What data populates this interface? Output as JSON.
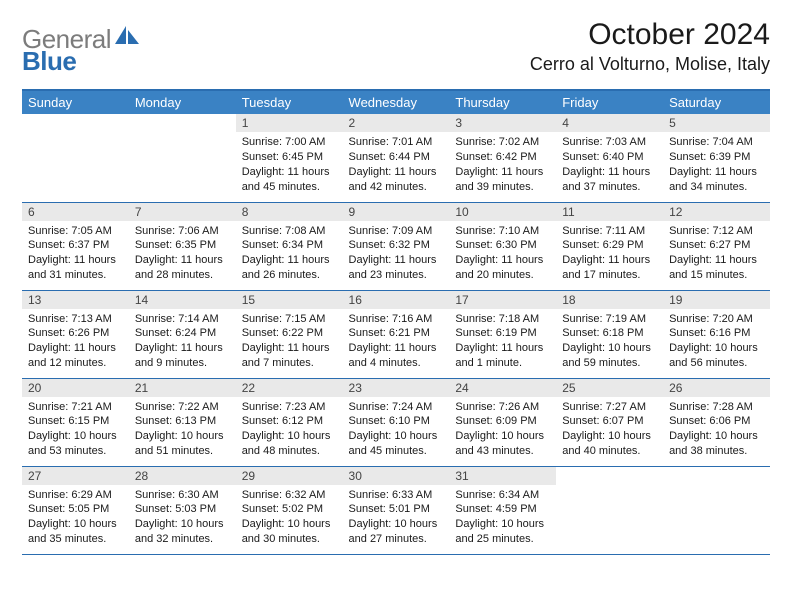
{
  "logo": {
    "part1": "General",
    "part2": "Blue"
  },
  "title": "October 2024",
  "location": "Cerro al Volturno, Molise, Italy",
  "colors": {
    "header_bg": "#3a82c4",
    "border": "#2a6db0",
    "daynum_bg": "#e9e9e9",
    "logo_gray": "#7c7c7c",
    "logo_blue": "#2a6db0"
  },
  "daysOfWeek": [
    "Sunday",
    "Monday",
    "Tuesday",
    "Wednesday",
    "Thursday",
    "Friday",
    "Saturday"
  ],
  "weeks": [
    [
      null,
      null,
      {
        "n": "1",
        "sr": "7:00 AM",
        "ss": "6:45 PM",
        "dl": "11 hours and 45 minutes."
      },
      {
        "n": "2",
        "sr": "7:01 AM",
        "ss": "6:44 PM",
        "dl": "11 hours and 42 minutes."
      },
      {
        "n": "3",
        "sr": "7:02 AM",
        "ss": "6:42 PM",
        "dl": "11 hours and 39 minutes."
      },
      {
        "n": "4",
        "sr": "7:03 AM",
        "ss": "6:40 PM",
        "dl": "11 hours and 37 minutes."
      },
      {
        "n": "5",
        "sr": "7:04 AM",
        "ss": "6:39 PM",
        "dl": "11 hours and 34 minutes."
      }
    ],
    [
      {
        "n": "6",
        "sr": "7:05 AM",
        "ss": "6:37 PM",
        "dl": "11 hours and 31 minutes."
      },
      {
        "n": "7",
        "sr": "7:06 AM",
        "ss": "6:35 PM",
        "dl": "11 hours and 28 minutes."
      },
      {
        "n": "8",
        "sr": "7:08 AM",
        "ss": "6:34 PM",
        "dl": "11 hours and 26 minutes."
      },
      {
        "n": "9",
        "sr": "7:09 AM",
        "ss": "6:32 PM",
        "dl": "11 hours and 23 minutes."
      },
      {
        "n": "10",
        "sr": "7:10 AM",
        "ss": "6:30 PM",
        "dl": "11 hours and 20 minutes."
      },
      {
        "n": "11",
        "sr": "7:11 AM",
        "ss": "6:29 PM",
        "dl": "11 hours and 17 minutes."
      },
      {
        "n": "12",
        "sr": "7:12 AM",
        "ss": "6:27 PM",
        "dl": "11 hours and 15 minutes."
      }
    ],
    [
      {
        "n": "13",
        "sr": "7:13 AM",
        "ss": "6:26 PM",
        "dl": "11 hours and 12 minutes."
      },
      {
        "n": "14",
        "sr": "7:14 AM",
        "ss": "6:24 PM",
        "dl": "11 hours and 9 minutes."
      },
      {
        "n": "15",
        "sr": "7:15 AM",
        "ss": "6:22 PM",
        "dl": "11 hours and 7 minutes."
      },
      {
        "n": "16",
        "sr": "7:16 AM",
        "ss": "6:21 PM",
        "dl": "11 hours and 4 minutes."
      },
      {
        "n": "17",
        "sr": "7:18 AM",
        "ss": "6:19 PM",
        "dl": "11 hours and 1 minute."
      },
      {
        "n": "18",
        "sr": "7:19 AM",
        "ss": "6:18 PM",
        "dl": "10 hours and 59 minutes."
      },
      {
        "n": "19",
        "sr": "7:20 AM",
        "ss": "6:16 PM",
        "dl": "10 hours and 56 minutes."
      }
    ],
    [
      {
        "n": "20",
        "sr": "7:21 AM",
        "ss": "6:15 PM",
        "dl": "10 hours and 53 minutes."
      },
      {
        "n": "21",
        "sr": "7:22 AM",
        "ss": "6:13 PM",
        "dl": "10 hours and 51 minutes."
      },
      {
        "n": "22",
        "sr": "7:23 AM",
        "ss": "6:12 PM",
        "dl": "10 hours and 48 minutes."
      },
      {
        "n": "23",
        "sr": "7:24 AM",
        "ss": "6:10 PM",
        "dl": "10 hours and 45 minutes."
      },
      {
        "n": "24",
        "sr": "7:26 AM",
        "ss": "6:09 PM",
        "dl": "10 hours and 43 minutes."
      },
      {
        "n": "25",
        "sr": "7:27 AM",
        "ss": "6:07 PM",
        "dl": "10 hours and 40 minutes."
      },
      {
        "n": "26",
        "sr": "7:28 AM",
        "ss": "6:06 PM",
        "dl": "10 hours and 38 minutes."
      }
    ],
    [
      {
        "n": "27",
        "sr": "6:29 AM",
        "ss": "5:05 PM",
        "dl": "10 hours and 35 minutes."
      },
      {
        "n": "28",
        "sr": "6:30 AM",
        "ss": "5:03 PM",
        "dl": "10 hours and 32 minutes."
      },
      {
        "n": "29",
        "sr": "6:32 AM",
        "ss": "5:02 PM",
        "dl": "10 hours and 30 minutes."
      },
      {
        "n": "30",
        "sr": "6:33 AM",
        "ss": "5:01 PM",
        "dl": "10 hours and 27 minutes."
      },
      {
        "n": "31",
        "sr": "6:34 AM",
        "ss": "4:59 PM",
        "dl": "10 hours and 25 minutes."
      },
      null,
      null
    ]
  ],
  "labels": {
    "sunrise": "Sunrise: ",
    "sunset": "Sunset: ",
    "daylight": "Daylight: "
  }
}
